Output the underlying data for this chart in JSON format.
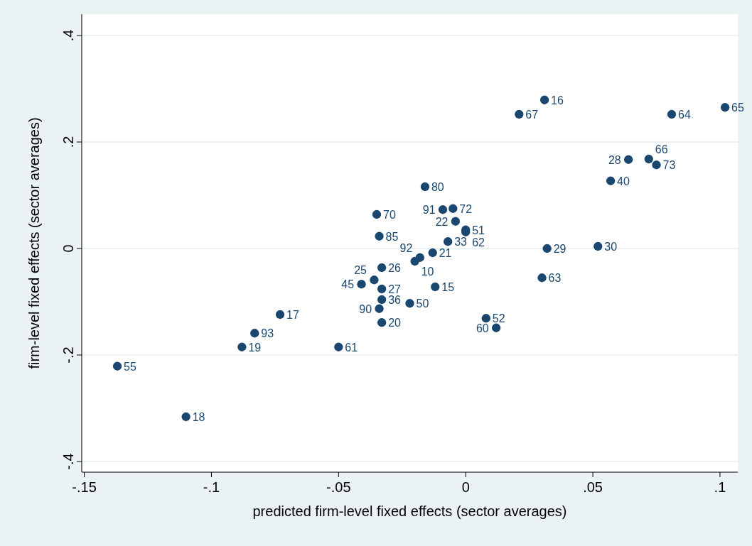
{
  "chart_data": {
    "type": "scatter",
    "xlabel": "predicted firm-level fixed effects (sector averages)",
    "ylabel": "firm-level fixed effects (sector averages)",
    "xlim": [
      -0.151,
      0.107
    ],
    "ylim": [
      -0.42,
      0.44
    ],
    "xticks": [
      {
        "value": -0.15,
        "label": "-.15"
      },
      {
        "value": -0.1,
        "label": "-.1"
      },
      {
        "value": -0.05,
        "label": "-.05"
      },
      0,
      {
        "value": 0.05,
        "label": ".05"
      },
      {
        "value": 0.1,
        "label": ".1"
      }
    ],
    "yticks": [
      {
        "value": -0.4,
        "label": "-.4"
      },
      {
        "value": -0.2,
        "label": "-.2"
      },
      0,
      {
        "value": 0.2,
        "label": ".2"
      },
      {
        "value": 0.4,
        "label": ".4"
      }
    ],
    "grid": "y",
    "marker": "circle",
    "series": [
      {
        "color": "#1a476f",
        "x": [
          -0.137,
          -0.11,
          -0.088,
          -0.083,
          -0.073,
          -0.05,
          -0.041,
          -0.036,
          -0.033,
          -0.033,
          -0.033,
          -0.034,
          -0.033,
          -0.035,
          -0.034,
          -0.022,
          -0.02,
          -0.018,
          -0.013,
          -0.012,
          -0.016,
          -0.007,
          -0.009,
          -0.005,
          -0.004,
          0.0,
          0.0,
          0.008,
          0.012,
          0.021,
          0.031,
          0.032,
          0.03,
          0.052,
          0.057,
          0.064,
          0.072,
          0.075,
          0.081,
          0.102
        ],
        "values": [
          -0.221,
          -0.316,
          -0.185,
          -0.159,
          -0.124,
          -0.185,
          -0.067,
          -0.059,
          -0.036,
          -0.076,
          -0.096,
          -0.113,
          -0.139,
          0.064,
          0.023,
          -0.103,
          -0.024,
          -0.017,
          -0.008,
          -0.072,
          0.116,
          0.013,
          0.073,
          0.075,
          0.051,
          0.035,
          0.031,
          -0.131,
          -0.149,
          0.252,
          0.279,
          0.0,
          -0.055,
          0.004,
          0.127,
          0.167,
          0.168,
          0.157,
          0.252,
          0.265
        ]
      }
    ],
    "annotations": [
      {
        "text": "55",
        "x": -0.137,
        "y": -0.221
      },
      {
        "text": "18",
        "x": -0.11,
        "y": -0.316
      },
      {
        "text": "19",
        "x": -0.088,
        "y": -0.185
      },
      {
        "text": "93",
        "x": -0.083,
        "y": -0.159
      },
      {
        "text": "17",
        "x": -0.073,
        "y": -0.124
      },
      {
        "text": "61",
        "x": -0.05,
        "y": -0.185
      },
      {
        "text": "45",
        "x": -0.041,
        "y": -0.067
      },
      {
        "text": "25",
        "x": -0.036,
        "y": -0.059
      },
      {
        "text": "26",
        "x": -0.033,
        "y": -0.036
      },
      {
        "text": "27",
        "x": -0.033,
        "y": -0.076
      },
      {
        "text": "36",
        "x": -0.033,
        "y": -0.096
      },
      {
        "text": "90",
        "x": -0.034,
        "y": -0.113
      },
      {
        "text": "20",
        "x": -0.033,
        "y": -0.139
      },
      {
        "text": "70",
        "x": -0.035,
        "y": 0.064
      },
      {
        "text": "85",
        "x": -0.034,
        "y": 0.023
      },
      {
        "text": "50",
        "x": -0.022,
        "y": -0.103
      },
      {
        "text": "10",
        "x": -0.02,
        "y": -0.024
      },
      {
        "text": "92",
        "x": -0.018,
        "y": -0.017
      },
      {
        "text": "21",
        "x": -0.013,
        "y": -0.008
      },
      {
        "text": "15",
        "x": -0.012,
        "y": -0.072
      },
      {
        "text": "80",
        "x": -0.016,
        "y": 0.116
      },
      {
        "text": "33",
        "x": -0.007,
        "y": 0.013
      },
      {
        "text": "91",
        "x": -0.009,
        "y": 0.073
      },
      {
        "text": "72",
        "x": -0.005,
        "y": 0.075
      },
      {
        "text": "22",
        "x": -0.004,
        "y": 0.051
      },
      {
        "text": "51",
        "x": 0.0,
        "y": 0.035
      },
      {
        "text": "62",
        "x": 0.0,
        "y": 0.031
      },
      {
        "text": "52",
        "x": 0.008,
        "y": -0.131
      },
      {
        "text": "60",
        "x": 0.012,
        "y": -0.149
      },
      {
        "text": "67",
        "x": 0.021,
        "y": 0.252
      },
      {
        "text": "16",
        "x": 0.031,
        "y": 0.279
      },
      {
        "text": "29",
        "x": 0.032,
        "y": 0.0
      },
      {
        "text": "63",
        "x": 0.03,
        "y": -0.055
      },
      {
        "text": "30",
        "x": 0.052,
        "y": 0.004
      },
      {
        "text": "40",
        "x": 0.057,
        "y": 0.127
      },
      {
        "text": "28",
        "x": 0.064,
        "y": 0.167
      },
      {
        "text": "66",
        "x": 0.072,
        "y": 0.168
      },
      {
        "text": "73",
        "x": 0.075,
        "y": 0.157
      },
      {
        "text": "64",
        "x": 0.081,
        "y": 0.252
      },
      {
        "text": "65",
        "x": 0.102,
        "y": 0.265
      }
    ]
  }
}
